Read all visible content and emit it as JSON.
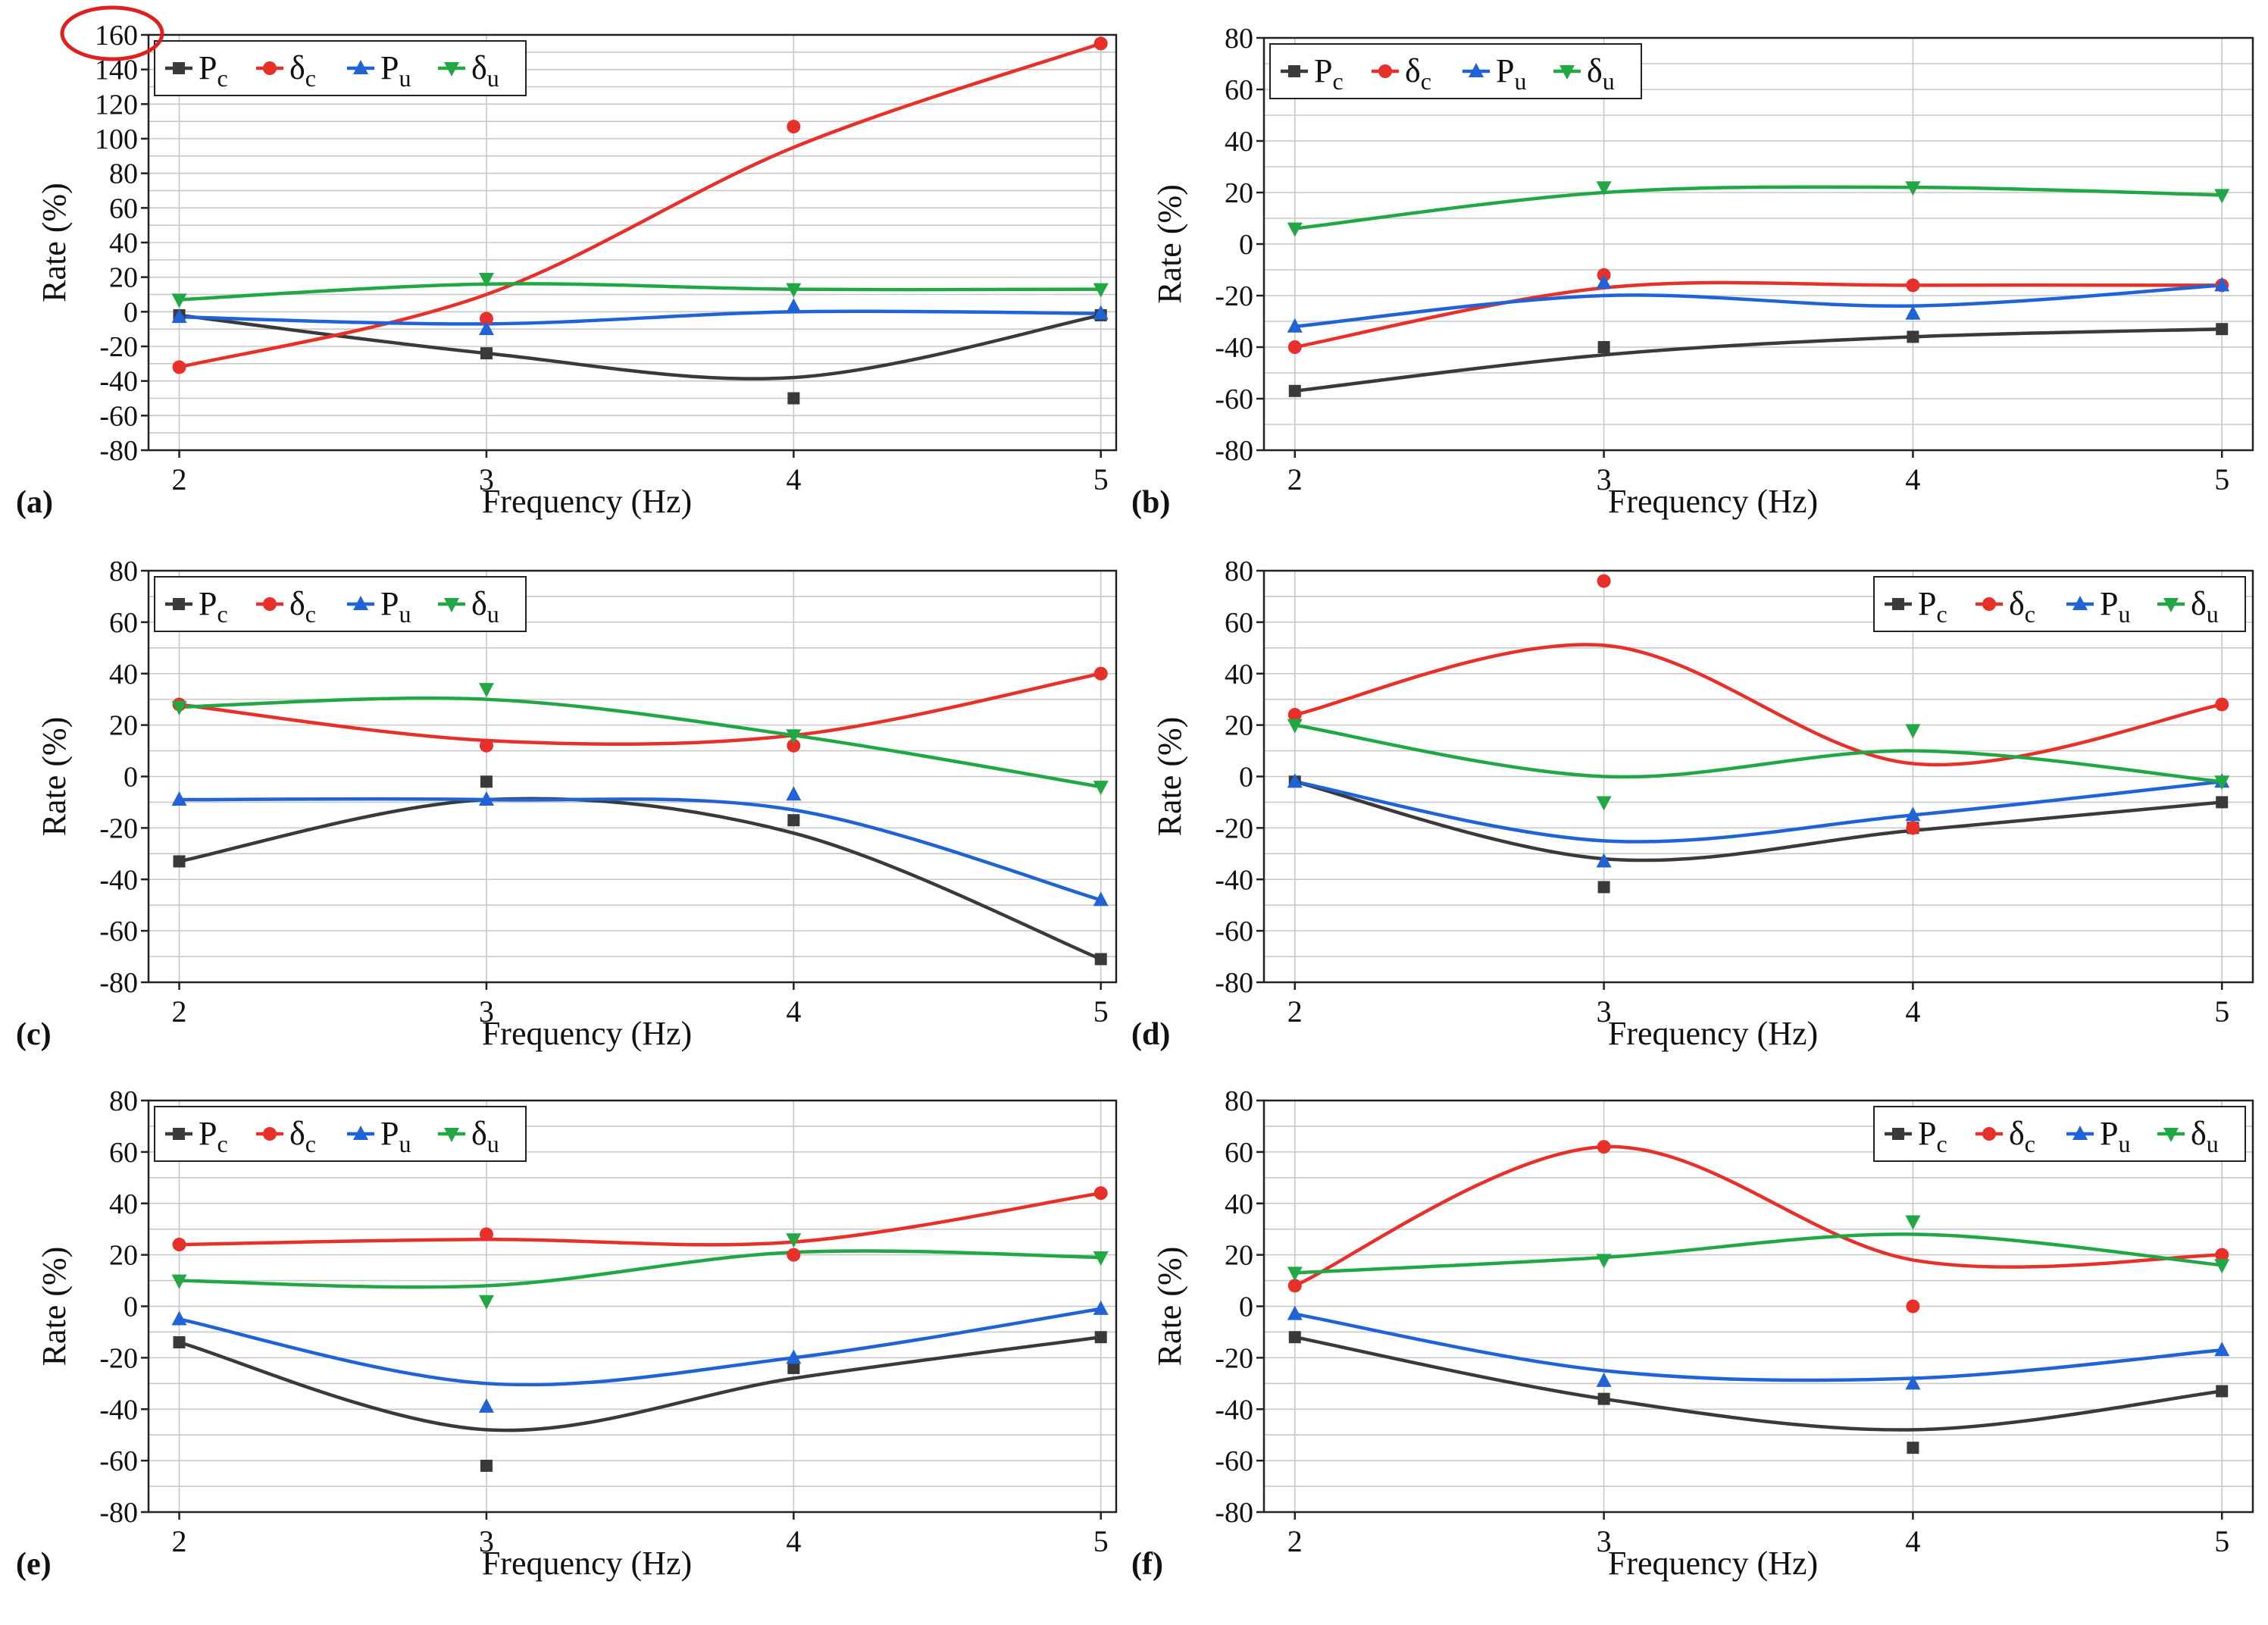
{
  "figure": {
    "highlight": {
      "panel": 0,
      "tick": 160,
      "color": "#e02020"
    }
  },
  "legend_labels": [
    {
      "base": "P",
      "sub": "c"
    },
    {
      "base": "δ",
      "sub": "c"
    },
    {
      "base": "P",
      "sub": "u"
    },
    {
      "base": "δ",
      "sub": "u"
    }
  ],
  "series_colors": [
    "#3a3a3a",
    "#e8302a",
    "#1f63d6",
    "#22a745"
  ],
  "chart_data": [
    {
      "type": "line",
      "panel_label": "(a)",
      "xlabel": "Frequency (Hz)",
      "ylabel": "Rate (%)",
      "x": [
        2,
        3,
        4,
        5
      ],
      "xlim": [
        1.9,
        5.05
      ],
      "ylim": [
        -80,
        160
      ],
      "yticks": [
        -80,
        -60,
        -40,
        -20,
        0,
        20,
        40,
        60,
        80,
        100,
        120,
        140,
        160
      ],
      "grid": true,
      "legend_position": "top-left",
      "series": [
        {
          "points": [
            -2,
            -24,
            -50,
            -2
          ],
          "curve": [
            -2,
            -24,
            -38,
            -2
          ]
        },
        {
          "points": [
            -32,
            -4,
            107,
            155
          ],
          "curve": [
            -32,
            10,
            95,
            155
          ]
        },
        {
          "points": [
            -3,
            -10,
            3,
            -1
          ],
          "curve": [
            -3,
            -7,
            0,
            -1
          ]
        },
        {
          "points": [
            7,
            19,
            13,
            13
          ],
          "curve": [
            7,
            16,
            13,
            13
          ]
        }
      ]
    },
    {
      "type": "line",
      "panel_label": "(b)",
      "xlabel": "Frequency (Hz)",
      "ylabel": "Rate (%)",
      "x": [
        2,
        3,
        4,
        5
      ],
      "xlim": [
        1.9,
        5.1
      ],
      "ylim": [
        -80,
        80
      ],
      "yticks": [
        -80,
        -60,
        -40,
        -20,
        0,
        20,
        40,
        60,
        80
      ],
      "grid": true,
      "legend_position": "top-left",
      "series": [
        {
          "points": [
            -57,
            -40,
            -36,
            -33
          ],
          "curve": [
            -57,
            -43,
            -36,
            -33
          ]
        },
        {
          "points": [
            -40,
            -12,
            -16,
            -16
          ],
          "curve": [
            -40,
            -17,
            -16,
            -16
          ]
        },
        {
          "points": [
            -32,
            -15,
            -27,
            -16
          ],
          "curve": [
            -32,
            -20,
            -24,
            -16
          ]
        },
        {
          "points": [
            6,
            22,
            22,
            19
          ],
          "curve": [
            6,
            20,
            22,
            19
          ]
        }
      ]
    },
    {
      "type": "line",
      "panel_label": "(c)",
      "xlabel": "Frequency (Hz)",
      "ylabel": "Rate (%)",
      "x": [
        2,
        3,
        4,
        5
      ],
      "xlim": [
        1.9,
        5.05
      ],
      "ylim": [
        -80,
        80
      ],
      "yticks": [
        -80,
        -60,
        -40,
        -20,
        0,
        20,
        40,
        60,
        80
      ],
      "grid": true,
      "legend_position": "top-left",
      "series": [
        {
          "points": [
            -33,
            -2,
            -17,
            -71
          ],
          "curve": [
            -33,
            -9,
            -22,
            -71
          ]
        },
        {
          "points": [
            28,
            12,
            12,
            40
          ],
          "curve": [
            28,
            14,
            16,
            40
          ]
        },
        {
          "points": [
            -9,
            -9,
            -7,
            -48
          ],
          "curve": [
            -9,
            -9,
            -13,
            -48
          ]
        },
        {
          "points": [
            27,
            34,
            16,
            -4
          ],
          "curve": [
            27,
            30,
            16,
            -4
          ]
        }
      ]
    },
    {
      "type": "line",
      "panel_label": "(d)",
      "xlabel": "Frequency (Hz)",
      "ylabel": "Rate (%)",
      "x": [
        2,
        3,
        4,
        5
      ],
      "xlim": [
        1.9,
        5.1
      ],
      "ylim": [
        -80,
        80
      ],
      "yticks": [
        -80,
        -60,
        -40,
        -20,
        0,
        20,
        40,
        60,
        80
      ],
      "grid": true,
      "legend_position": "top-right",
      "series": [
        {
          "points": [
            -2,
            -43,
            -20,
            -10
          ],
          "curve": [
            -2,
            -32,
            -21,
            -10
          ]
        },
        {
          "points": [
            24,
            76,
            -20,
            28
          ],
          "curve": [
            24,
            51,
            5,
            28
          ]
        },
        {
          "points": [
            -2,
            -33,
            -15,
            -2
          ],
          "curve": [
            -2,
            -25,
            -15,
            -2
          ]
        },
        {
          "points": [
            20,
            -10,
            18,
            -2
          ],
          "curve": [
            20,
            0,
            10,
            -2
          ]
        }
      ]
    },
    {
      "type": "line",
      "panel_label": "(e)",
      "xlabel": "Frequency (Hz)",
      "ylabel": "Rate (%)",
      "x": [
        2,
        3,
        4,
        5
      ],
      "xlim": [
        1.9,
        5.05
      ],
      "ylim": [
        -80,
        80
      ],
      "yticks": [
        -80,
        -60,
        -40,
        -20,
        0,
        20,
        40,
        60,
        80
      ],
      "grid": true,
      "legend_position": "top-left",
      "series": [
        {
          "points": [
            -14,
            -62,
            -24,
            -12
          ],
          "curve": [
            -14,
            -48,
            -28,
            -12
          ]
        },
        {
          "points": [
            24,
            28,
            20,
            44
          ],
          "curve": [
            24,
            26,
            25,
            44
          ]
        },
        {
          "points": [
            -5,
            -39,
            -20,
            -1
          ],
          "curve": [
            -5,
            -30,
            -20,
            -1
          ]
        },
        {
          "points": [
            10,
            2,
            26,
            19
          ],
          "curve": [
            10,
            8,
            21,
            19
          ]
        }
      ]
    },
    {
      "type": "line",
      "panel_label": "(f)",
      "xlabel": "Frequency (Hz)",
      "ylabel": "Rate (%)",
      "x": [
        2,
        3,
        4,
        5
      ],
      "xlim": [
        1.9,
        5.1
      ],
      "ylim": [
        -80,
        80
      ],
      "yticks": [
        -80,
        -60,
        -40,
        -20,
        0,
        20,
        40,
        60,
        80
      ],
      "grid": true,
      "legend_position": "top-right",
      "series": [
        {
          "points": [
            -12,
            -36,
            -55,
            -33
          ],
          "curve": [
            -12,
            -36,
            -48,
            -33
          ]
        },
        {
          "points": [
            8,
            62,
            0,
            20
          ],
          "curve": [
            8,
            62,
            18,
            20
          ]
        },
        {
          "points": [
            -3,
            -29,
            -30,
            -17
          ],
          "curve": [
            -3,
            -25,
            -28,
            -17
          ]
        },
        {
          "points": [
            13,
            18,
            33,
            16
          ],
          "curve": [
            13,
            19,
            28,
            16
          ]
        }
      ]
    }
  ]
}
